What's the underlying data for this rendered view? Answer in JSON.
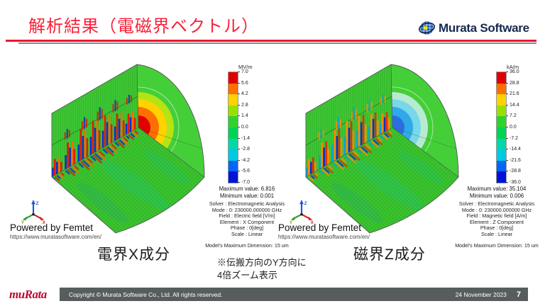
{
  "slide": {
    "title": "解析結果（電磁界ベクトル）",
    "note_line1": "※伝搬方向のY方向に",
    "note_line2": "4倍ズーム表示"
  },
  "logo": {
    "brand": "Murata Software"
  },
  "femtet": {
    "powered_by": "Powered by Femtet",
    "url": "https://www.muratasoftware.com/en/"
  },
  "footer": {
    "brand": "muRata",
    "copyright": "Copyright © Murata Software Co., Ltd. All rights reserved.",
    "date": "24 November 2023",
    "page": "7"
  },
  "colors": {
    "title_red": "#fa2038",
    "accent_line_red": "#ef1432",
    "footer_bar_gray": "#575d5d",
    "logo_navy": "#17294e",
    "murata_brand_red": "#bf0a30",
    "model_base_green": "#3fc832"
  },
  "chart_data": [
    {
      "type": "heatmap",
      "title": "電界X成分",
      "unit": "MV/m",
      "colorbar_ticks": [
        "7.0",
        "5.6",
        "4.2",
        "2.8",
        "1.4",
        "0.0",
        "-1.4",
        "-2.8",
        "-4.2",
        "-5.6",
        "-7.0"
      ],
      "colorbar_range": [
        -7.0,
        7.0
      ],
      "colorbar_colors": [
        "#e10000",
        "#ff6e00",
        "#ffd300",
        "#97e000",
        "#2fd32f",
        "#00d455",
        "#00d7ab",
        "#00c9e2",
        "#0066f5",
        "#0013d9"
      ],
      "max_label": "Maximum value: 6.816",
      "min_label": "Minimum value: 0.001",
      "info_lines": [
        "Solver : Electromagnetic Analysis",
        "Mode : 0: 230000.000000 GHz",
        "Field : Electric field [V/m]",
        "Element : X Component",
        "Phase : 0[deg]",
        "Scale : Linear"
      ],
      "dimension": "Model's Maximum Dimension: 15 um",
      "core_rings": [
        "#b4e414",
        "#ffd300",
        "#ff6e00",
        "#e10000"
      ],
      "stripe_colors": [
        "#0a2fd0",
        "#e11d00",
        "#0a2fd0",
        "#ff6a00",
        "#e11d00"
      ]
    },
    {
      "type": "heatmap",
      "title": "磁界Z成分",
      "unit": "kA/m",
      "colorbar_ticks": [
        "36.0",
        "28.8",
        "21.6",
        "14.4",
        "7.2",
        "0.0",
        "-7.2",
        "-14.4",
        "-21.6",
        "-28.8",
        "-36.0"
      ],
      "colorbar_range": [
        -36.0,
        36.0
      ],
      "colorbar_colors": [
        "#e10000",
        "#ff6e00",
        "#ffd300",
        "#97e000",
        "#2fd32f",
        "#00d455",
        "#00d7ab",
        "#00c9e2",
        "#0066f5",
        "#0013d9"
      ],
      "max_label": "Maximum value: 35.104",
      "min_label": "Minimum value: 0.006",
      "info_lines": [
        "Solver : Electromagnetic Analysis",
        "Mode : 0: 230000.000000 GHz",
        "Field : Magnetic field [A/m]",
        "Element : Z Component",
        "Phase : 0[deg]",
        "Scale : Linear"
      ],
      "dimension": "Model's Maximum Dimension: 15 um",
      "core_rings": [
        "#b8ead2",
        "#78d7e8",
        "#2fa9e8",
        "#2b6ee0"
      ],
      "stripe_colors": [
        "#00a6e0",
        "#ff8a00",
        "#0a2fd0",
        "#e13200",
        "#ff8a00"
      ]
    }
  ]
}
